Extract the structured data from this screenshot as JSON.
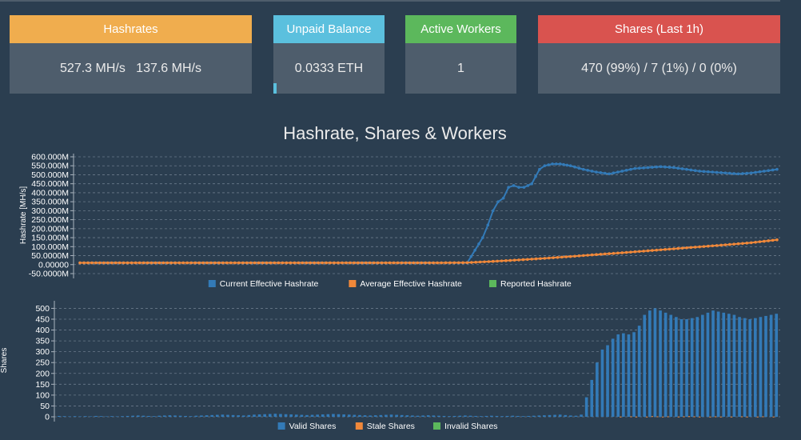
{
  "cards": [
    {
      "title": "Hashrates",
      "value": "527.3 MH/s   137.6 MH/s",
      "color": "#f0ad4e"
    },
    {
      "title": "Unpaid Balance",
      "value": "0.0333 ETH",
      "color": "#5bc0de",
      "progress": 0.03
    },
    {
      "title": "Active Workers",
      "value": "1",
      "color": "#5cb85c"
    },
    {
      "title": "Shares (Last 1h)",
      "value": "470 (99%) / 7 (1%) / 0 (0%)",
      "color": "#d9534f"
    }
  ],
  "chart_title": "Hashrate, Shares & Workers",
  "chart_data": [
    {
      "type": "line",
      "ylabel": "Hashrate [MH/s]",
      "ylim": [
        -50,
        600
      ],
      "yticks": [
        "600.000M",
        "550.000M",
        "500.000M",
        "450.000M",
        "400.000M",
        "350.000M",
        "300.000M",
        "250.000M",
        "200.000M",
        "150.000M",
        "100.000M",
        "50.0000M",
        "0.00000",
        "-50.0000M"
      ],
      "grid": true,
      "legend_position": "bottom",
      "series": [
        {
          "name": "Current Effective Hashrate",
          "color": "#337ab7",
          "x": [
            0,
            10,
            20,
            30,
            40,
            50,
            60,
            70,
            80,
            90,
            100,
            110,
            120,
            130,
            140,
            145,
            150,
            153,
            156,
            158,
            160,
            162,
            164,
            166,
            168,
            170,
            172,
            175,
            178,
            180,
            183,
            186,
            190,
            195,
            200,
            205,
            210,
            215,
            220,
            225,
            230,
            235,
            240,
            245,
            250,
            255,
            260,
            265,
            270
          ],
          "values": [
            10,
            10,
            10,
            10,
            10,
            10,
            10,
            10,
            10,
            10,
            10,
            10,
            10,
            10,
            10,
            10,
            10,
            80,
            150,
            220,
            300,
            350,
            370,
            430,
            440,
            430,
            430,
            450,
            530,
            550,
            560,
            560,
            550,
            530,
            515,
            505,
            520,
            535,
            540,
            545,
            540,
            530,
            520,
            515,
            510,
            505,
            510,
            520,
            530
          ]
        },
        {
          "name": "Average Effective Hashrate",
          "color": "#f0883a",
          "x": [
            0,
            20,
            40,
            60,
            80,
            100,
            120,
            140,
            150,
            160,
            170,
            180,
            190,
            200,
            210,
            220,
            230,
            240,
            250,
            260,
            270
          ],
          "values": [
            10,
            10,
            10,
            10,
            10,
            10,
            10,
            10,
            11,
            18,
            26,
            35,
            45,
            56,
            66,
            77,
            88,
            99,
            110,
            122,
            138
          ]
        },
        {
          "name": "Reported Hashrate",
          "color": "#5cb85c",
          "x": [],
          "values": []
        }
      ]
    },
    {
      "type": "bar",
      "ylabel": "Shares",
      "ylim": [
        0,
        520
      ],
      "yticks": [
        "500",
        "450",
        "400",
        "350",
        "300",
        "250",
        "200",
        "150",
        "100",
        "50",
        "0"
      ],
      "grid": true,
      "legend_position": "bottom",
      "series": [
        {
          "name": "Valid Shares",
          "color": "#337ab7",
          "values": [
            4,
            3,
            2,
            3,
            2,
            3,
            2,
            4,
            3,
            2,
            3,
            2,
            3,
            4,
            5,
            6,
            5,
            4,
            3,
            5,
            6,
            7,
            6,
            5,
            4,
            3,
            5,
            6,
            7,
            8,
            9,
            10,
            9,
            8,
            7,
            6,
            8,
            10,
            11,
            12,
            13,
            14,
            13,
            12,
            11,
            10,
            9,
            8,
            9,
            10,
            11,
            12,
            13,
            12,
            11,
            10,
            9,
            8,
            7,
            6,
            7,
            8,
            9,
            10,
            9,
            8,
            7,
            6,
            5,
            6,
            7,
            6,
            5,
            4,
            3,
            4,
            5,
            6,
            5,
            4,
            3,
            4,
            5,
            4,
            3,
            4,
            5,
            4,
            3,
            4,
            5,
            6,
            7,
            8,
            9,
            10,
            8,
            6,
            5,
            10,
            90,
            170,
            250,
            310,
            330,
            360,
            380,
            385,
            380,
            390,
            420,
            470,
            490,
            500,
            490,
            480,
            470,
            460,
            450,
            450,
            455,
            460,
            470,
            480,
            490,
            485,
            480,
            475,
            470,
            460,
            455,
            450,
            455,
            460,
            465,
            470,
            475
          ]
        },
        {
          "name": "Stale Shares",
          "color": "#f0883a",
          "values": [
            0,
            0,
            0,
            0,
            0,
            0,
            0,
            0,
            0,
            0,
            0,
            0,
            0,
            0,
            0,
            0,
            0,
            0,
            0,
            0,
            0,
            0,
            0,
            0,
            0,
            0,
            0,
            0,
            0,
            0,
            0,
            0,
            0,
            0,
            0,
            0,
            0,
            0,
            0,
            0,
            0,
            0,
            0,
            0,
            0,
            0,
            0,
            0,
            0,
            0,
            0,
            0,
            0,
            0,
            0,
            0,
            0,
            0,
            0,
            0,
            0,
            0,
            0,
            0,
            0,
            0,
            0,
            0,
            0,
            0,
            0,
            0,
            0,
            0,
            0,
            0,
            0,
            0,
            0,
            0,
            0,
            0,
            0,
            0,
            0,
            0,
            0,
            0,
            0,
            0,
            0,
            0,
            0,
            0,
            0,
            0,
            0,
            0,
            0,
            0,
            0,
            0,
            0,
            0,
            0,
            0,
            1,
            0,
            2,
            1,
            0,
            1,
            3,
            2,
            1,
            2,
            0,
            1,
            2,
            3,
            2,
            1,
            0,
            1,
            2,
            1,
            0,
            1,
            0,
            2,
            1,
            0,
            1,
            2,
            0,
            1,
            0
          ]
        },
        {
          "name": "Invalid Shares",
          "color": "#5cb85c",
          "values": []
        }
      ]
    }
  ]
}
